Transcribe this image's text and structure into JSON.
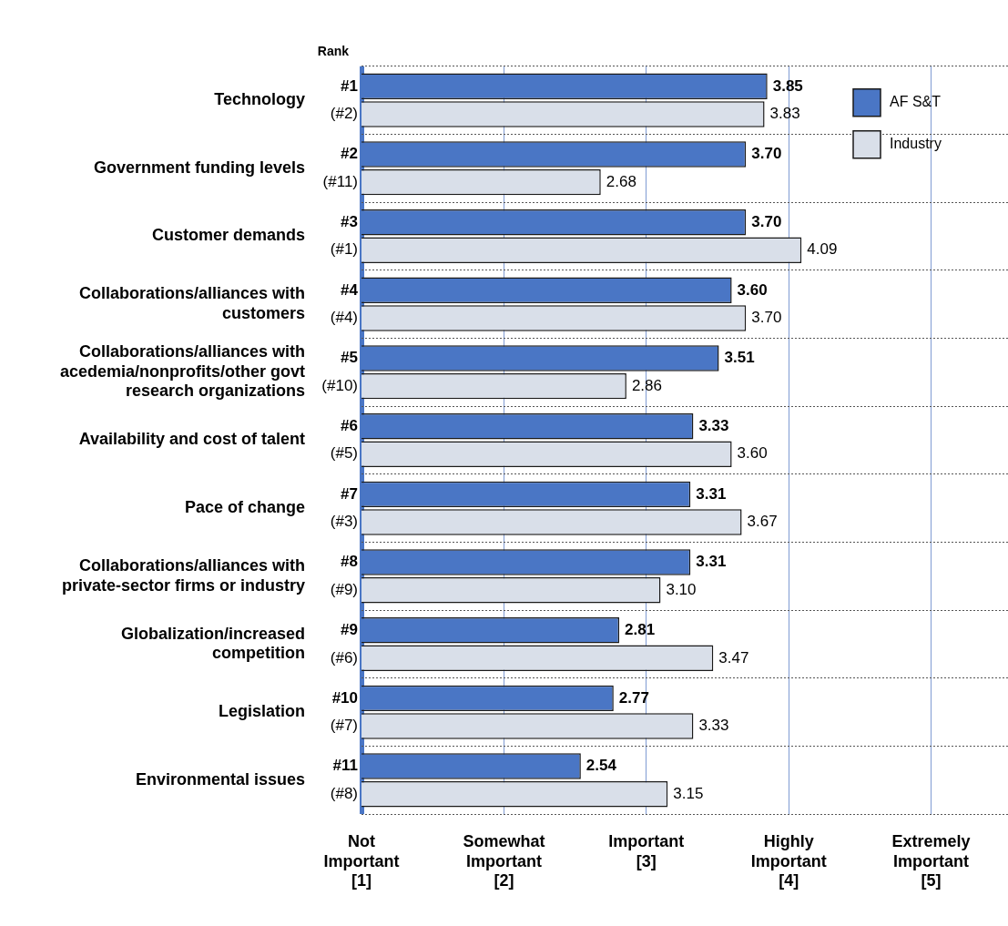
{
  "chart_data": {
    "type": "bar",
    "orientation": "horizontal",
    "categories": [
      "Technology",
      "Government funding levels",
      "Customer demands",
      "Collaborations/alliances with customers",
      "Collaborations/alliances with acedemia/nonprofits/other govt research organizations",
      "Availability and cost of talent",
      "Pace of change",
      "Collaborations/alliances with private-sector firms or industry",
      "Globalization/increased competition",
      "Legislation",
      "Environmental issues"
    ],
    "series": [
      {
        "name": "AF S&T",
        "color": "#4a76c5",
        "values": [
          3.85,
          3.7,
          3.7,
          3.6,
          3.51,
          3.33,
          3.31,
          3.31,
          2.81,
          2.77,
          2.54
        ],
        "value_labels": [
          "3.85",
          "3.70",
          "3.70",
          "3.60",
          "3.51",
          "3.33",
          "3.31",
          "3.31",
          "2.81",
          "2.77",
          "2.54"
        ]
      },
      {
        "name": "Industry",
        "color": "#d9dfe9",
        "values": [
          3.83,
          2.68,
          4.09,
          3.7,
          2.86,
          3.6,
          3.67,
          3.1,
          3.47,
          3.33,
          3.15
        ],
        "value_labels": [
          "3.83",
          "2.68",
          "4.09",
          "3.70",
          "2.86",
          "3.60",
          "3.67",
          "3.10",
          "3.47",
          "3.33",
          "3.15"
        ]
      }
    ],
    "xlim": [
      1,
      5.54
    ],
    "xticks": [
      {
        "value": 1,
        "label": "Not Important [1]"
      },
      {
        "value": 2,
        "label": "Somewhat Important [2]"
      },
      {
        "value": 3,
        "label": "Important [3]"
      },
      {
        "value": 4,
        "label": "Highly Important [4]"
      },
      {
        "value": 5,
        "label": "Extremely Important [5]"
      }
    ],
    "grid": true,
    "legend": "top right",
    "annotations": [
      "Rank",
      {
        "text": "#1",
        "y": "Technology"
      },
      {
        "text": "(#2)",
        "y": "Technology"
      },
      {
        "text": "#2",
        "y": "Government funding levels"
      },
      {
        "text": "(#11)",
        "y": "Government funding levels"
      },
      {
        "text": "#3",
        "y": "Customer demands"
      },
      {
        "text": "(#1)",
        "y": "Customer demands"
      },
      {
        "text": "#4",
        "y": "Collaborations/alliances with customers"
      },
      {
        "text": "(#4)",
        "y": "Collaborations/alliances with customers"
      },
      {
        "text": "#5",
        "y": "Collaborations/alliances with acedemia/nonprofits/other govt research organizations"
      },
      {
        "text": "(#10)",
        "y": "Collaborations/alliances with acedemia/nonprofits/other govt research organizations"
      },
      {
        "text": "#6",
        "y": "Availability and cost of talent"
      },
      {
        "text": "(#5)",
        "y": "Availability and cost of talent"
      },
      {
        "text": "#7",
        "y": "Pace of change"
      },
      {
        "text": "(#3)",
        "y": "Pace of change"
      },
      {
        "text": "#8",
        "y": "Collaborations/alliances with private-sector firms or industry"
      },
      {
        "text": "(#9)",
        "y": "Collaborations/alliances with private-sector firms or industry"
      },
      {
        "text": "#9",
        "y": "Globalization/increased competition"
      },
      {
        "text": "(#6)",
        "y": "Globalization/increased competition"
      },
      {
        "text": "#10",
        "y": "Legislation"
      },
      {
        "text": "(#7)",
        "y": "Legislation"
      },
      {
        "text": "#11",
        "y": "Environmental issues"
      },
      {
        "text": "(#8)",
        "y": "Environmental issues"
      }
    ]
  }
}
